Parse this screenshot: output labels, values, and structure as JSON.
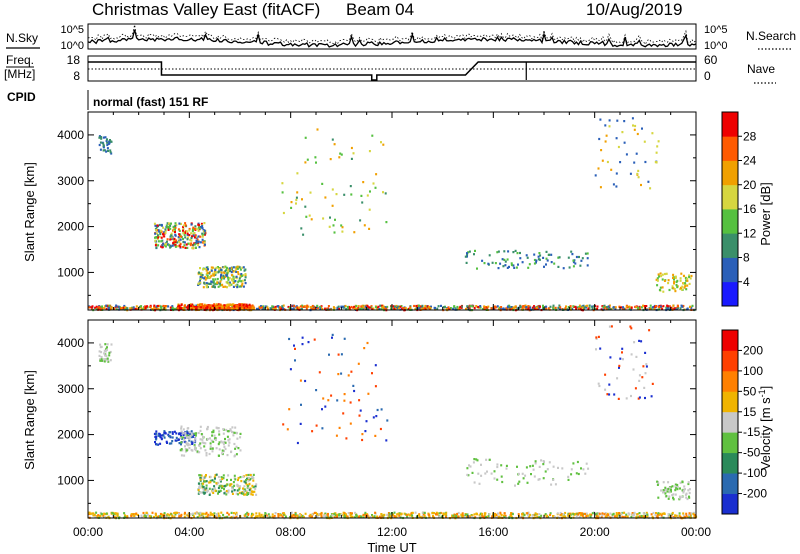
{
  "header": {
    "title": "Christmas Valley East (fitACF)",
    "beam": "Beam 04",
    "date": "10/Aug/2019"
  },
  "nsky_panel": {
    "left_label": "N.Sky",
    "right_label": "N.Search",
    "left_ticks": [
      "10^5",
      "10^0"
    ],
    "right_ticks": [
      "10^5",
      "10^0"
    ]
  },
  "freq_panel": {
    "left_label_top": "Freq.",
    "left_label_unit": "[MHz]",
    "right_label": "Nave",
    "left_ticks": [
      "18",
      "8"
    ],
    "right_ticks": [
      "60",
      "0"
    ]
  },
  "cpid_panel": {
    "label": "CPID",
    "value": "normal (fast) 151 RF"
  },
  "chart_data": [
    {
      "type": "heatmap",
      "name": "power",
      "ylabel": "Slant Range [km]",
      "xlabel": "",
      "yticks": [
        "1000",
        "2000",
        "3000",
        "4000"
      ],
      "ylim": [
        180,
        4500
      ],
      "colorbar": {
        "label": "Power [dB]",
        "ticks": [
          "4",
          "8",
          "12",
          "16",
          "20",
          "24",
          "28"
        ],
        "colors": [
          "#1a1aff",
          "#2a5fb8",
          "#3a8f6a",
          "#55c040",
          "#d6d640",
          "#f0a000",
          "#ff5a00",
          "#ee0000"
        ]
      }
    },
    {
      "type": "heatmap",
      "name": "velocity",
      "ylabel": "Slant Range [km]",
      "xlabel": "Time UT",
      "yticks": [
        "1000",
        "2000",
        "3000",
        "4000"
      ],
      "ylim": [
        180,
        4500
      ],
      "xticks": [
        "00:00",
        "04:00",
        "08:00",
        "12:00",
        "16:00",
        "20:00",
        "00:00"
      ],
      "colorbar": {
        "label": "Velocity [m s",
        "label_exponent": "-1",
        "label_close": "]",
        "ticks": [
          "200",
          "100",
          "50",
          "15",
          "-15",
          "-50",
          "-100",
          "-200"
        ],
        "colors": [
          "#1a2fd0",
          "#2a6ab0",
          "#2a8a5a",
          "#60c040",
          "#c8c8c8",
          "#f0b400",
          "#ff8000",
          "#ff4000",
          "#ee0000"
        ]
      }
    }
  ]
}
